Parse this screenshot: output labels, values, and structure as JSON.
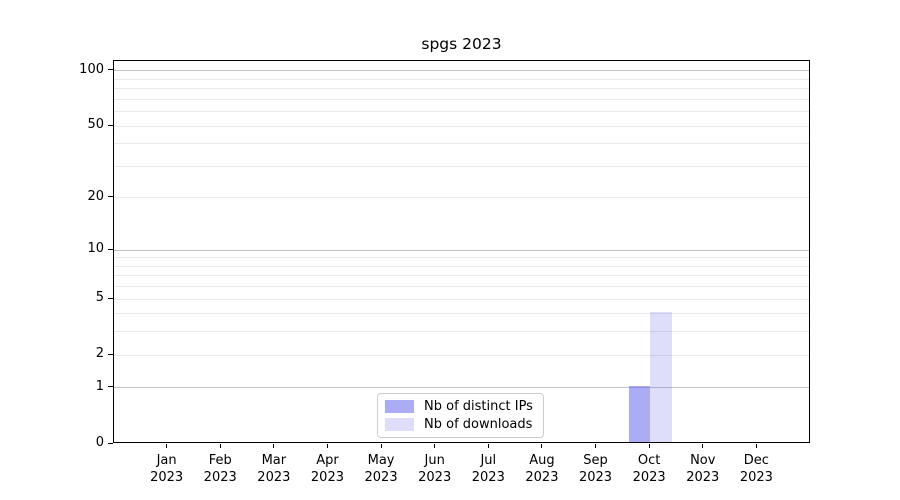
{
  "title": "spgs 2023",
  "chart_data": {
    "type": "bar",
    "title": "spgs 2023",
    "yscale": "log1p",
    "categories": [
      "Jan",
      "Feb",
      "Mar",
      "Apr",
      "May",
      "Jun",
      "Jul",
      "Aug",
      "Sep",
      "Oct",
      "Nov",
      "Dec"
    ],
    "year": "2023",
    "series": [
      {
        "name": "Nb of distinct IPs",
        "color": "rgba(90,90,235,0.5)",
        "values": [
          0,
          0,
          0,
          0,
          0,
          0,
          0,
          0,
          0,
          1,
          0,
          0
        ]
      },
      {
        "name": "Nb of downloads",
        "color": "rgba(90,90,235,0.2)",
        "values": [
          0,
          0,
          0,
          0,
          0,
          0,
          0,
          0,
          0,
          4,
          0,
          0
        ]
      }
    ],
    "yticks": [
      0,
      1,
      2,
      5,
      10,
      20,
      50,
      100
    ],
    "decade_ticks": [
      1,
      10,
      100
    ],
    "minor_gridlines": [
      3,
      4,
      6,
      7,
      8,
      9,
      30,
      40,
      60,
      70,
      80,
      90
    ],
    "ylim": [
      0,
      113
    ],
    "xlabel": "",
    "ylabel": "",
    "grid": true,
    "legend_position": "lower center"
  },
  "colors": {
    "background": "#ffffff",
    "axis": "#000000",
    "major_grid": "#c4c4c4",
    "minor_grid": "#e9e9e9",
    "bar_distinct_ips": "rgba(90,90,235,0.5)",
    "bar_downloads": "rgba(90,90,235,0.2)",
    "legend_border": "#cccccc"
  }
}
